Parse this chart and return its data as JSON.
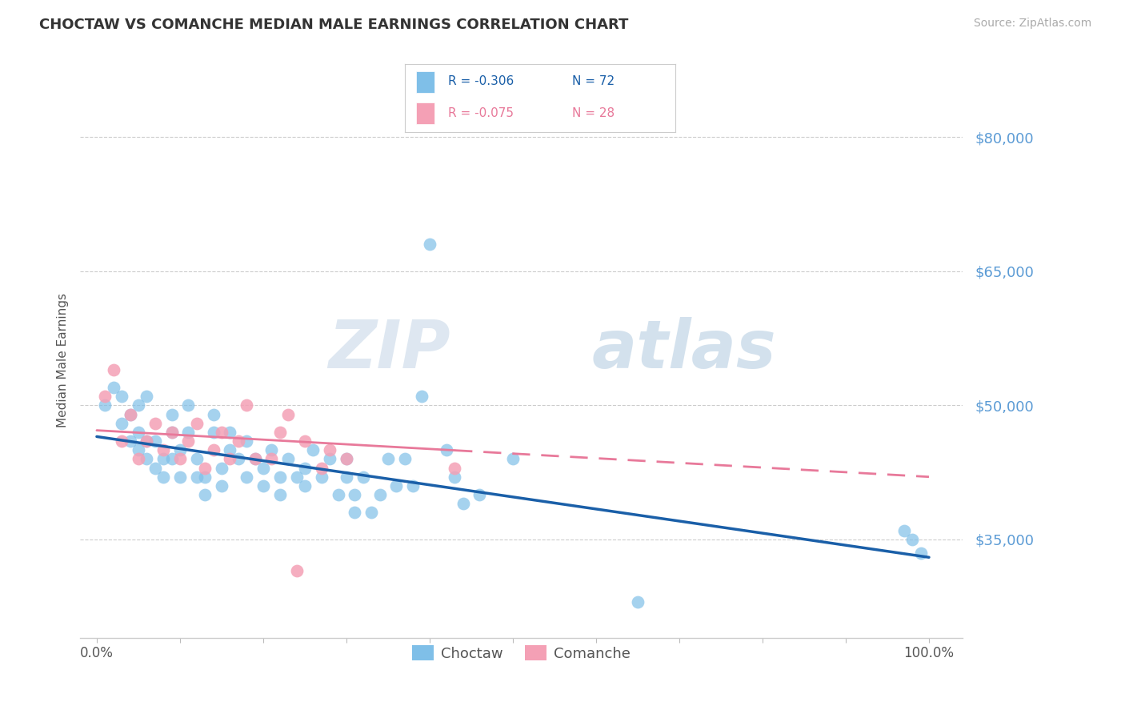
{
  "title": "CHOCTAW VS COMANCHE MEDIAN MALE EARNINGS CORRELATION CHART",
  "source": "Source: ZipAtlas.com",
  "ylabel": "Median Male Earnings",
  "y_ticks": [
    35000,
    50000,
    65000,
    80000
  ],
  "y_tick_labels": [
    "$35,000",
    "$50,000",
    "$65,000",
    "$80,000"
  ],
  "y_min": 24000,
  "y_max": 86000,
  "x_min": -0.02,
  "x_max": 1.04,
  "legend_R_blue": "-0.306",
  "legend_N_blue": "72",
  "legend_R_pink": "-0.075",
  "legend_N_pink": "28",
  "legend_blue_label": "Choctaw",
  "legend_pink_label": "Comanche",
  "choctaw_color": "#7fbfe8",
  "comanche_color": "#f4a0b5",
  "trendline_blue_color": "#1a5fa8",
  "trendline_pink_color": "#e8799a",
  "watermark_zip": "ZIP",
  "watermark_atlas": "atlas",
  "background_color": "#ffffff",
  "choctaw_x": [
    0.01,
    0.02,
    0.03,
    0.03,
    0.04,
    0.04,
    0.05,
    0.05,
    0.05,
    0.06,
    0.06,
    0.06,
    0.07,
    0.07,
    0.08,
    0.08,
    0.09,
    0.09,
    0.09,
    0.1,
    0.1,
    0.11,
    0.11,
    0.12,
    0.12,
    0.13,
    0.13,
    0.14,
    0.14,
    0.15,
    0.15,
    0.16,
    0.16,
    0.17,
    0.18,
    0.18,
    0.19,
    0.2,
    0.2,
    0.21,
    0.22,
    0.22,
    0.23,
    0.24,
    0.25,
    0.25,
    0.26,
    0.27,
    0.28,
    0.29,
    0.3,
    0.3,
    0.31,
    0.31,
    0.32,
    0.33,
    0.34,
    0.35,
    0.36,
    0.37,
    0.38,
    0.39,
    0.4,
    0.42,
    0.43,
    0.44,
    0.46,
    0.5,
    0.65,
    0.97,
    0.98,
    0.99
  ],
  "choctaw_y": [
    50000,
    52000,
    48000,
    51000,
    46000,
    49000,
    45000,
    47000,
    50000,
    44000,
    46000,
    51000,
    43000,
    46000,
    42000,
    44000,
    47000,
    49000,
    44000,
    42000,
    45000,
    47000,
    50000,
    42000,
    44000,
    40000,
    42000,
    47000,
    49000,
    41000,
    43000,
    45000,
    47000,
    44000,
    42000,
    46000,
    44000,
    41000,
    43000,
    45000,
    40000,
    42000,
    44000,
    42000,
    41000,
    43000,
    45000,
    42000,
    44000,
    40000,
    42000,
    44000,
    38000,
    40000,
    42000,
    38000,
    40000,
    44000,
    41000,
    44000,
    41000,
    51000,
    68000,
    45000,
    42000,
    39000,
    40000,
    44000,
    28000,
    36000,
    35000,
    33500
  ],
  "comanche_x": [
    0.01,
    0.02,
    0.03,
    0.04,
    0.05,
    0.06,
    0.07,
    0.08,
    0.09,
    0.1,
    0.11,
    0.12,
    0.13,
    0.14,
    0.15,
    0.16,
    0.17,
    0.18,
    0.19,
    0.21,
    0.22,
    0.23,
    0.25,
    0.27,
    0.28,
    0.3,
    0.43,
    0.24
  ],
  "comanche_y": [
    51000,
    54000,
    46000,
    49000,
    44000,
    46000,
    48000,
    45000,
    47000,
    44000,
    46000,
    48000,
    43000,
    45000,
    47000,
    44000,
    46000,
    50000,
    44000,
    44000,
    47000,
    49000,
    46000,
    43000,
    45000,
    44000,
    43000,
    31500
  ],
  "trendline_blue_x0": 0.0,
  "trendline_blue_x1": 1.0,
  "trendline_blue_y0": 46500,
  "trendline_blue_y1": 33000,
  "trendline_pink_x0": 0.0,
  "trendline_pink_x1": 1.0,
  "trendline_pink_y0": 47200,
  "trendline_pink_y1": 42000,
  "trendline_pink_solid_end": 0.43
}
